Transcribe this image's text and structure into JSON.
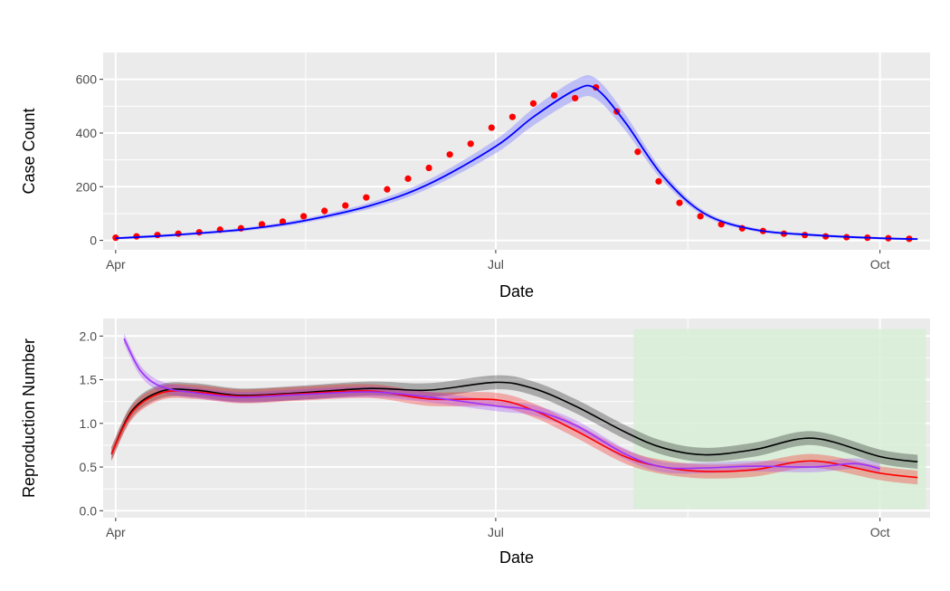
{
  "chart_data": [
    {
      "type": "scatter",
      "panel": "top",
      "xlabel": "Date",
      "ylabel": "Case Count",
      "xlim": [
        "2020-03-29",
        "2020-10-13"
      ],
      "ylim": [
        -35,
        700
      ],
      "x_ticks": [
        {
          "date": "2020-04-01",
          "label": "Apr"
        },
        {
          "date": "2020-07-01",
          "label": "Jul"
        },
        {
          "date": "2020-10-01",
          "label": "Oct"
        }
      ],
      "y_ticks": [
        0,
        200,
        400,
        600
      ],
      "grid": true,
      "colors": {
        "points": "#ff0000",
        "fit": "#0000ff",
        "ribbon": "#9999ff",
        "background": "#ebebeb"
      },
      "series": [
        {
          "kind": "points",
          "x": [
            "2020-04-01",
            "2020-04-06",
            "2020-04-11",
            "2020-04-16",
            "2020-04-21",
            "2020-04-26",
            "2020-05-01",
            "2020-05-06",
            "2020-05-11",
            "2020-05-16",
            "2020-05-21",
            "2020-05-26",
            "2020-05-31",
            "2020-06-05",
            "2020-06-10",
            "2020-06-15",
            "2020-06-20",
            "2020-06-25",
            "2020-06-30",
            "2020-07-05",
            "2020-07-10",
            "2020-07-15",
            "2020-07-20",
            "2020-07-25",
            "2020-07-30",
            "2020-08-04",
            "2020-08-09",
            "2020-08-14",
            "2020-08-19",
            "2020-08-24",
            "2020-08-29",
            "2020-09-03",
            "2020-09-08",
            "2020-09-13",
            "2020-09-18",
            "2020-09-23",
            "2020-09-28",
            "2020-10-03",
            "2020-10-08"
          ],
          "y": [
            10,
            15,
            20,
            25,
            30,
            40,
            45,
            60,
            70,
            90,
            110,
            130,
            160,
            190,
            230,
            270,
            320,
            360,
            420,
            460,
            510,
            540,
            530,
            570,
            480,
            330,
            220,
            140,
            90,
            60,
            45,
            35,
            25,
            20,
            15,
            12,
            10,
            8,
            6
          ]
        },
        {
          "kind": "fit",
          "x": [
            "2020-04-01",
            "2020-04-15",
            "2020-05-01",
            "2020-05-15",
            "2020-06-01",
            "2020-06-15",
            "2020-07-01",
            "2020-07-10",
            "2020-07-20",
            "2020-07-25",
            "2020-08-01",
            "2020-08-10",
            "2020-08-20",
            "2020-09-01",
            "2020-09-15",
            "2020-10-01",
            "2020-10-10"
          ],
          "y": [
            8,
            20,
            40,
            70,
            130,
            210,
            350,
            460,
            560,
            565,
            440,
            240,
            100,
            40,
            20,
            8,
            5
          ]
        }
      ]
    },
    {
      "type": "line",
      "panel": "bottom",
      "xlabel": "Date",
      "ylabel": "Reproduction Number",
      "xlim": [
        "2020-03-29",
        "2020-10-13"
      ],
      "ylim": [
        -0.08,
        2.2
      ],
      "x_ticks": [
        {
          "date": "2020-04-01",
          "label": "Apr"
        },
        {
          "date": "2020-07-01",
          "label": "Jul"
        },
        {
          "date": "2020-10-01",
          "label": "Oct"
        }
      ],
      "y_ticks": [
        0.0,
        0.5,
        1.0,
        1.5,
        2.0
      ],
      "y_tick_labels": [
        "0.0",
        "0.5",
        "1.0",
        "1.5",
        "2.0"
      ],
      "grid": true,
      "colors": {
        "background": "#ebebeb",
        "shaded_region": "#d7efd7"
      },
      "shaded_region": {
        "x": [
          "2020-08-03",
          "2020-10-12"
        ],
        "y": [
          0.02,
          2.08
        ]
      },
      "series": [
        {
          "color": "#000000",
          "x": [
            "2020-03-31",
            "2020-04-05",
            "2020-04-12",
            "2020-04-20",
            "2020-05-01",
            "2020-05-15",
            "2020-06-01",
            "2020-06-15",
            "2020-07-01",
            "2020-07-10",
            "2020-07-20",
            "2020-08-01",
            "2020-08-10",
            "2020-08-20",
            "2020-09-01",
            "2020-09-15",
            "2020-10-01",
            "2020-10-10"
          ],
          "y": [
            0.65,
            1.15,
            1.37,
            1.38,
            1.32,
            1.35,
            1.4,
            1.38,
            1.47,
            1.4,
            1.2,
            0.9,
            0.72,
            0.64,
            0.7,
            0.83,
            0.62,
            0.56
          ],
          "band": 0.08
        },
        {
          "color": "#ff0000",
          "x": [
            "2020-03-31",
            "2020-04-05",
            "2020-04-12",
            "2020-04-20",
            "2020-05-01",
            "2020-05-15",
            "2020-06-01",
            "2020-06-15",
            "2020-07-01",
            "2020-07-10",
            "2020-07-20",
            "2020-08-01",
            "2020-08-10",
            "2020-08-20",
            "2020-09-01",
            "2020-09-15",
            "2020-10-01",
            "2020-10-10"
          ],
          "y": [
            0.65,
            1.13,
            1.35,
            1.36,
            1.31,
            1.34,
            1.37,
            1.28,
            1.27,
            1.15,
            0.92,
            0.62,
            0.5,
            0.45,
            0.47,
            0.57,
            0.43,
            0.38
          ],
          "band": 0.08
        },
        {
          "color": "#9b30ff",
          "x": [
            "2020-04-03",
            "2020-04-07",
            "2020-04-12",
            "2020-04-20",
            "2020-05-01",
            "2020-05-15",
            "2020-06-01",
            "2020-06-15",
            "2020-07-01",
            "2020-07-10",
            "2020-07-20",
            "2020-08-01",
            "2020-08-10",
            "2020-08-20",
            "2020-09-01",
            "2020-09-15",
            "2020-09-25",
            "2020-10-01"
          ],
          "y": [
            1.97,
            1.6,
            1.42,
            1.35,
            1.3,
            1.33,
            1.36,
            1.3,
            1.2,
            1.15,
            0.98,
            0.65,
            0.5,
            0.49,
            0.51,
            0.5,
            0.54,
            0.48
          ],
          "band": 0.06
        }
      ]
    }
  ]
}
